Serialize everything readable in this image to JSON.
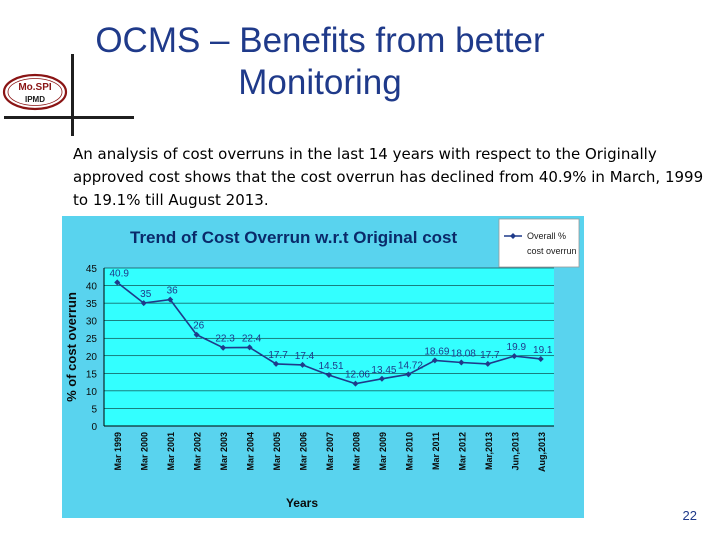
{
  "slide": {
    "title_line1": "OCMS – Benefits from better",
    "title_line2": "Monitoring",
    "intro": "An analysis of cost overruns in the last 14 years with respect to the Originally  approved cost shows that the cost overrun has declined from 40.9% in March, 1999 to 19.1% till August 2013.",
    "page_number": "22"
  },
  "logo": {
    "line1": "Mo.SPI",
    "line2": "IPMD"
  },
  "colors": {
    "title": "#1f3a8a",
    "chart_bg": "#59d3ee",
    "plot_bg": "#33ffff",
    "series": "#1f3a8a",
    "panel_title": "#0a2a6a"
  },
  "chart_data": {
    "type": "line",
    "title": "Trend of Cost Overrun w.r.t Original cost",
    "xlabel": "Years",
    "ylabel": "% of cost overrun",
    "ylim": [
      0,
      45
    ],
    "yticks": [
      0,
      5,
      10,
      15,
      20,
      25,
      30,
      35,
      40,
      45
    ],
    "grid": true,
    "legend_position": "top-right",
    "categories": [
      "Mar 1999",
      "Mar 2000",
      "Mar 2001",
      "Mar 2002",
      "Mar 2003",
      "Mar 2004",
      "Mar 2005",
      "Mar 2006",
      "Mar 2007",
      "Mar 2008",
      "Mar 2009",
      "Mar 2010",
      "Mar 2011",
      "Mar 2012",
      "Mar,2013",
      "Jun,2013",
      "Aug,2013"
    ],
    "series": [
      {
        "name": "Overall % cost overrun",
        "values": [
          40.9,
          35,
          36,
          26,
          22.3,
          22.4,
          17.7,
          17.4,
          14.51,
          12.06,
          13.45,
          14.72,
          18.69,
          18.08,
          17.7,
          19.9,
          19.1
        ],
        "labels": [
          "40.9",
          "35",
          "36",
          "26",
          "22.3",
          "22.4",
          "17.7",
          "17.4",
          "14.51",
          "12.06",
          "13.45",
          "14.72",
          "18.69",
          "18.08",
          "17.7",
          "19.9",
          "19.1"
        ]
      }
    ]
  }
}
